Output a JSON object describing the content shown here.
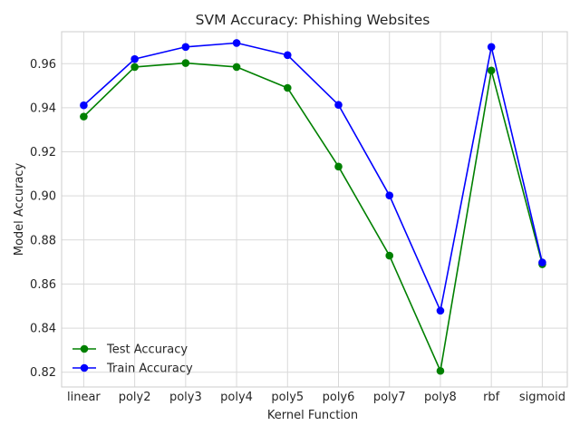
{
  "chart_data": {
    "type": "line",
    "title": "SVM Accuracy: Phishing Websites",
    "xlabel": "Kernel Function",
    "ylabel": "Model Accuracy",
    "categories": [
      "linear",
      "poly2",
      "poly3",
      "poly4",
      "poly5",
      "poly6",
      "poly7",
      "poly8",
      "rbf",
      "sigmoid"
    ],
    "ylim": [
      0.8133,
      0.9745
    ],
    "yticks": [
      0.82,
      0.84,
      0.86,
      0.88,
      0.9,
      0.92,
      0.94,
      0.96
    ],
    "ytick_labels": [
      "0.82",
      "0.84",
      "0.86",
      "0.88",
      "0.90",
      "0.92",
      "0.94",
      "0.96"
    ],
    "grid": true,
    "legend_position": "lower-left",
    "series": [
      {
        "name": "Test Accuracy",
        "color": "#008000",
        "marker": "circle",
        "values": [
          0.936,
          0.9585,
          0.9603,
          0.9585,
          0.949,
          0.9133,
          0.8729,
          0.8206,
          0.9569,
          0.869
        ]
      },
      {
        "name": "Train Accuracy",
        "color": "#0000ff",
        "marker": "circle",
        "values": [
          0.9411,
          0.9621,
          0.9676,
          0.9694,
          0.9639,
          0.9413,
          0.9002,
          0.8479,
          0.9676,
          0.8698
        ]
      }
    ]
  }
}
